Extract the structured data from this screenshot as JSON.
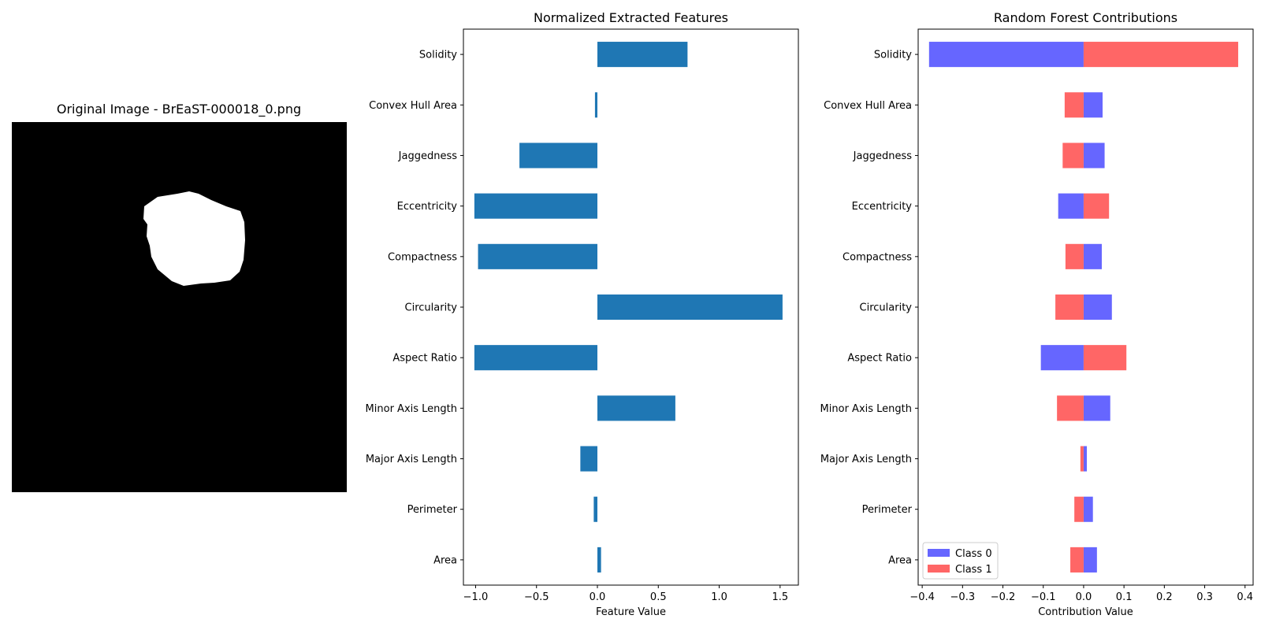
{
  "image_panel": {
    "title": "Original Image - BrEaST-000018_0.png"
  },
  "chart_data": [
    {
      "type": "bar",
      "orientation": "horizontal",
      "title": "Normalized Extracted Features",
      "xlabel": "Feature Value",
      "ylabel": "",
      "categories": [
        "Area",
        "Perimeter",
        "Major Axis Length",
        "Minor Axis Length",
        "Aspect Ratio",
        "Circularity",
        "Compactness",
        "Eccentricity",
        "Jaggedness",
        "Convex Hull Area",
        "Solidity"
      ],
      "values": [
        0.03,
        -0.03,
        -0.14,
        0.64,
        -1.01,
        1.52,
        -0.98,
        -1.01,
        -0.64,
        -0.02,
        0.74
      ],
      "xlim": [
        -1.1,
        1.65
      ],
      "xticks": [
        -1.0,
        -0.5,
        0.0,
        0.5,
        1.0,
        1.5
      ],
      "xtick_labels": [
        "−1.0",
        "−0.5",
        "0.0",
        "0.5",
        "1.0",
        "1.5"
      ],
      "colors": [
        "#1f77b4"
      ],
      "grid": false
    },
    {
      "type": "bar",
      "orientation": "horizontal",
      "stacked": true,
      "title": "Random Forest Contributions",
      "xlabel": "Contribution Value",
      "ylabel": "",
      "categories": [
        "Area",
        "Perimeter",
        "Major Axis Length",
        "Minor Axis Length",
        "Aspect Ratio",
        "Circularity",
        "Compactness",
        "Eccentricity",
        "Jaggedness",
        "Convex Hull Area",
        "Solidity"
      ],
      "series": [
        {
          "name": "Class 0",
          "color": "#6666ff",
          "values": [
            0.033,
            0.023,
            0.008,
            0.066,
            -0.106,
            0.07,
            0.045,
            -0.063,
            0.052,
            0.047,
            -0.383
          ]
        },
        {
          "name": "Class 1",
          "color": "#ff6666",
          "values": [
            -0.033,
            -0.023,
            -0.008,
            -0.066,
            0.106,
            -0.07,
            -0.045,
            0.063,
            -0.052,
            -0.047,
            0.383
          ]
        }
      ],
      "xlim": [
        -0.41,
        0.42
      ],
      "xticks": [
        -0.4,
        -0.3,
        -0.2,
        -0.1,
        0.0,
        0.1,
        0.2,
        0.3,
        0.4
      ],
      "xtick_labels": [
        "−0.4",
        "−0.3",
        "−0.2",
        "−0.1",
        "0.0",
        "0.1",
        "0.2",
        "0.3",
        "0.4"
      ],
      "legend_position": "lower-left",
      "grid": false
    }
  ]
}
